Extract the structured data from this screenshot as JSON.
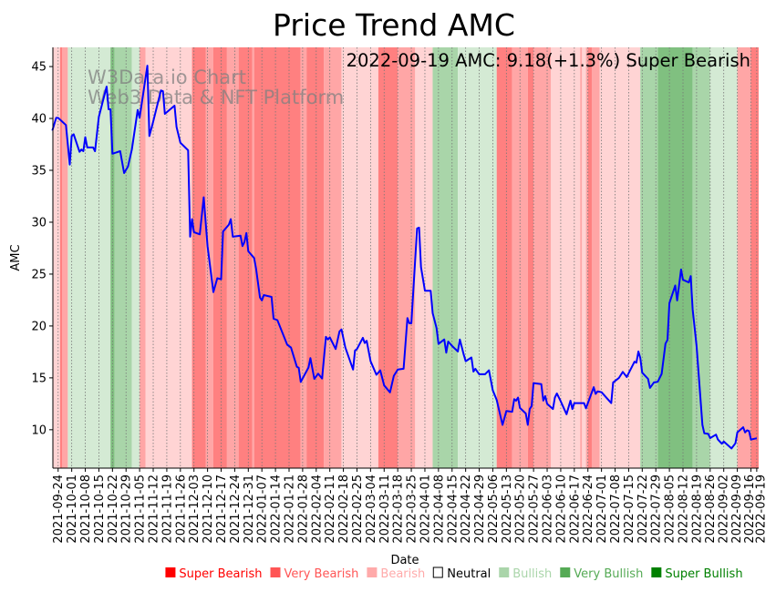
{
  "chart_data": {
    "type": "line",
    "title": "Price Trend AMC",
    "xlabel": "Date",
    "ylabel": "AMC",
    "ylim": [
      6.3,
      46.85
    ],
    "xlim": [
      "2021-09-21",
      "2022-09-20"
    ],
    "grid": "vertical dotted at x ticks",
    "annotation": "2022-09-19 AMC: 9.18(+1.3%) Super Bearish",
    "watermark": [
      "W3Data.io Chart",
      "Web3 Data & NFT Platform"
    ],
    "yticks": [
      10,
      15,
      20,
      25,
      30,
      35,
      40,
      45
    ],
    "xticks": [
      "2021-09-24",
      "2021-10-01",
      "2021-10-08",
      "2021-10-15",
      "2021-10-22",
      "2021-10-29",
      "2021-11-05",
      "2021-11-12",
      "2021-11-19",
      "2021-11-26",
      "2021-12-03",
      "2021-12-10",
      "2021-12-17",
      "2021-12-24",
      "2021-12-31",
      "2022-01-07",
      "2022-01-14",
      "2022-01-21",
      "2022-01-28",
      "2022-02-04",
      "2022-02-11",
      "2022-02-18",
      "2022-02-25",
      "2022-03-04",
      "2022-03-11",
      "2022-03-18",
      "2022-03-25",
      "2022-04-01",
      "2022-04-08",
      "2022-04-15",
      "2022-04-22",
      "2022-04-29",
      "2022-05-06",
      "2022-05-13",
      "2022-05-20",
      "2022-05-27",
      "2022-06-03",
      "2022-06-10",
      "2022-06-17",
      "2022-06-24",
      "2022-07-01",
      "2022-07-08",
      "2022-07-15",
      "2022-07-22",
      "2022-07-29",
      "2022-08-05",
      "2022-08-12",
      "2022-08-19",
      "2022-08-26",
      "2022-09-02",
      "2022-09-09",
      "2022-09-16",
      "2022-09-19"
    ],
    "legend": {
      "placement": "bottom",
      "entries": [
        {
          "label": "Super Bearish",
          "color": "#ff0000",
          "marker": "■"
        },
        {
          "label": "Very Bearish",
          "color": "#ff5555",
          "marker": "■"
        },
        {
          "label": "Bearish",
          "color": "#ffaaaa",
          "marker": "■"
        },
        {
          "label": "Neutral",
          "color": "#000000",
          "marker": "□"
        },
        {
          "label": "Bullish",
          "color": "#aad5aa",
          "marker": "■"
        },
        {
          "label": "Very Bullish",
          "color": "#55aa55",
          "marker": "■"
        },
        {
          "label": "Super Bullish",
          "color": "#008000",
          "marker": "■"
        }
      ]
    },
    "regime_colors": {
      "super_bearish": "#ff8080",
      "very_bearish": "#ffa6a6",
      "bearish": "#ffd4d4",
      "bullish": "#d4ead4",
      "very_bullish": "#a9d5a9",
      "super_bullish": "#80c080"
    },
    "regimes": [
      [
        "2021-09-21",
        "2021-09-25",
        "bearish"
      ],
      [
        "2021-09-25",
        "2021-09-26",
        "super_bearish"
      ],
      [
        "2021-09-26",
        "2021-09-29",
        "very_bearish"
      ],
      [
        "2021-09-29",
        "2021-10-21",
        "bullish"
      ],
      [
        "2021-10-21",
        "2021-10-23",
        "super_bullish"
      ],
      [
        "2021-10-23",
        "2021-11-01",
        "very_bullish"
      ],
      [
        "2021-11-01",
        "2021-11-05",
        "bullish"
      ],
      [
        "2021-11-05",
        "2021-11-08",
        "very_bearish"
      ],
      [
        "2021-11-08",
        "2021-12-02",
        "bearish"
      ],
      [
        "2021-12-02",
        "2021-12-09",
        "super_bearish"
      ],
      [
        "2021-12-09",
        "2021-12-13",
        "very_bearish"
      ],
      [
        "2021-12-13",
        "2021-12-20",
        "super_bearish"
      ],
      [
        "2021-12-20",
        "2021-12-26",
        "very_bearish"
      ],
      [
        "2021-12-26",
        "2022-01-02",
        "super_bearish"
      ],
      [
        "2022-01-02",
        "2022-01-03",
        "very_bearish"
      ],
      [
        "2022-01-03",
        "2022-01-27",
        "super_bearish"
      ],
      [
        "2022-01-27",
        "2022-01-30",
        "very_bearish"
      ],
      [
        "2022-01-30",
        "2022-02-08",
        "super_bearish"
      ],
      [
        "2022-02-08",
        "2022-02-17",
        "very_bearish"
      ],
      [
        "2022-02-17",
        "2022-03-08",
        "bearish"
      ],
      [
        "2022-03-08",
        "2022-03-18",
        "super_bearish"
      ],
      [
        "2022-03-18",
        "2022-03-27",
        "very_bearish"
      ],
      [
        "2022-03-27",
        "2022-04-05",
        "bearish"
      ],
      [
        "2022-04-05",
        "2022-04-18",
        "very_bullish"
      ],
      [
        "2022-04-18",
        "2022-05-08",
        "bullish"
      ],
      [
        "2022-05-08",
        "2022-05-16",
        "super_bearish"
      ],
      [
        "2022-05-16",
        "2022-05-24",
        "very_bearish"
      ],
      [
        "2022-05-24",
        "2022-05-27",
        "super_bearish"
      ],
      [
        "2022-05-27",
        "2022-06-05",
        "very_bearish"
      ],
      [
        "2022-06-05",
        "2022-06-20",
        "bearish"
      ],
      [
        "2022-06-20",
        "2022-06-21",
        "very_bearish"
      ],
      [
        "2022-06-21",
        "2022-06-23",
        "bearish"
      ],
      [
        "2022-06-23",
        "2022-06-24",
        "very_bearish"
      ],
      [
        "2022-06-24",
        "2022-06-26",
        "super_bearish"
      ],
      [
        "2022-06-26",
        "2022-06-30",
        "very_bearish"
      ],
      [
        "2022-06-30",
        "2022-07-21",
        "bearish"
      ],
      [
        "2022-07-21",
        "2022-07-30",
        "very_bullish"
      ],
      [
        "2022-07-30",
        "2022-08-17",
        "super_bullish"
      ],
      [
        "2022-08-17",
        "2022-08-26",
        "very_bullish"
      ],
      [
        "2022-08-26",
        "2022-09-09",
        "bullish"
      ],
      [
        "2022-09-09",
        "2022-09-16",
        "very_bearish"
      ],
      [
        "2022-09-16",
        "2022-09-20",
        "super_bearish"
      ]
    ],
    "series": [
      {
        "name": "AMC",
        "color": "#0000ff",
        "points": [
          [
            "2021-09-21",
            38.83
          ],
          [
            "2021-09-23",
            40.06
          ],
          [
            "2021-09-24",
            40.06
          ],
          [
            "2021-09-28",
            39.36
          ],
          [
            "2021-09-30",
            35.55
          ],
          [
            "2021-10-01",
            38.3
          ],
          [
            "2021-10-02",
            38.48
          ],
          [
            "2021-10-05",
            36.78
          ],
          [
            "2021-10-06",
            37.0
          ],
          [
            "2021-10-07",
            36.84
          ],
          [
            "2021-10-08",
            38.2
          ],
          [
            "2021-10-09",
            37.2
          ],
          [
            "2021-10-12",
            37.2
          ],
          [
            "2021-10-13",
            36.84
          ],
          [
            "2021-10-15",
            40.15
          ],
          [
            "2021-10-19",
            43.07
          ],
          [
            "2021-10-20",
            40.88
          ],
          [
            "2021-10-21",
            40.88
          ],
          [
            "2021-10-22",
            36.6
          ],
          [
            "2021-10-26",
            36.84
          ],
          [
            "2021-10-28",
            34.74
          ],
          [
            "2021-10-30",
            35.38
          ],
          [
            "2021-11-01",
            37.0
          ],
          [
            "2021-11-04",
            40.82
          ],
          [
            "2021-11-05",
            40.06
          ],
          [
            "2021-11-09",
            45.09
          ],
          [
            "2021-11-10",
            38.3
          ],
          [
            "2021-11-12",
            39.7
          ],
          [
            "2021-11-16",
            42.7
          ],
          [
            "2021-11-17",
            42.63
          ],
          [
            "2021-11-18",
            40.44
          ],
          [
            "2021-11-23",
            41.23
          ],
          [
            "2021-11-24",
            39.18
          ],
          [
            "2021-11-26",
            37.66
          ],
          [
            "2021-11-30",
            36.93
          ],
          [
            "2021-12-01",
            28.6
          ],
          [
            "2021-12-02",
            30.3
          ],
          [
            "2021-12-03",
            29.04
          ],
          [
            "2021-12-06",
            28.83
          ],
          [
            "2021-12-08",
            32.4
          ],
          [
            "2021-12-10",
            27.7
          ],
          [
            "2021-12-13",
            23.27
          ],
          [
            "2021-12-15",
            24.6
          ],
          [
            "2021-12-17",
            24.5
          ],
          [
            "2021-12-18",
            29.1
          ],
          [
            "2021-12-21",
            29.77
          ],
          [
            "2021-12-22",
            30.3
          ],
          [
            "2021-12-23",
            28.6
          ],
          [
            "2021-12-27",
            28.7
          ],
          [
            "2021-12-28",
            27.7
          ],
          [
            "2021-12-29",
            28.07
          ],
          [
            "2021-12-30",
            28.95
          ],
          [
            "2021-12-31",
            27.2
          ],
          [
            "2022-01-03",
            26.55
          ],
          [
            "2022-01-04",
            25.53
          ],
          [
            "2022-01-06",
            22.75
          ],
          [
            "2022-01-07",
            22.46
          ],
          [
            "2022-01-08",
            22.98
          ],
          [
            "2022-01-12",
            22.8
          ],
          [
            "2022-01-13",
            20.7
          ],
          [
            "2022-01-15",
            20.56
          ],
          [
            "2022-01-20",
            18.2
          ],
          [
            "2022-01-22",
            17.92
          ],
          [
            "2022-01-25",
            16.08
          ],
          [
            "2022-01-26",
            15.96
          ],
          [
            "2022-01-27",
            14.6
          ],
          [
            "2022-01-31",
            16.0
          ],
          [
            "2022-02-01",
            16.9
          ],
          [
            "2022-02-03",
            14.9
          ],
          [
            "2022-02-05",
            15.4
          ],
          [
            "2022-02-07",
            14.94
          ],
          [
            "2022-02-09",
            18.95
          ],
          [
            "2022-02-10",
            18.7
          ],
          [
            "2022-02-11",
            18.9
          ],
          [
            "2022-02-14",
            17.78
          ],
          [
            "2022-02-16",
            19.47
          ],
          [
            "2022-02-17",
            19.67
          ],
          [
            "2022-02-19",
            17.92
          ],
          [
            "2022-02-23",
            15.8
          ],
          [
            "2022-02-24",
            17.63
          ],
          [
            "2022-02-25",
            17.78
          ],
          [
            "2022-02-28",
            18.86
          ],
          [
            "2022-03-01",
            18.36
          ],
          [
            "2022-03-02",
            18.57
          ],
          [
            "2022-03-04",
            16.6
          ],
          [
            "2022-03-07",
            15.3
          ],
          [
            "2022-03-09",
            15.73
          ],
          [
            "2022-03-11",
            14.27
          ],
          [
            "2022-03-14",
            13.6
          ],
          [
            "2022-03-16",
            15.2
          ],
          [
            "2022-03-18",
            15.8
          ],
          [
            "2022-03-21",
            15.88
          ],
          [
            "2022-03-23",
            20.76
          ],
          [
            "2022-03-24",
            20.26
          ],
          [
            "2022-03-25",
            20.26
          ],
          [
            "2022-03-28",
            29.4
          ],
          [
            "2022-03-29",
            29.47
          ],
          [
            "2022-03-30",
            25.67
          ],
          [
            "2022-04-01",
            23.4
          ],
          [
            "2022-04-04",
            23.4
          ],
          [
            "2022-04-05",
            21.23
          ],
          [
            "2022-04-07",
            19.82
          ],
          [
            "2022-04-08",
            18.27
          ],
          [
            "2022-04-11",
            18.7
          ],
          [
            "2022-04-12",
            17.43
          ],
          [
            "2022-04-13",
            18.5
          ],
          [
            "2022-04-15",
            18.07
          ],
          [
            "2022-04-18",
            17.54
          ],
          [
            "2022-04-19",
            18.7
          ],
          [
            "2022-04-21",
            17.25
          ],
          [
            "2022-04-22",
            16.6
          ],
          [
            "2022-04-25",
            16.96
          ],
          [
            "2022-04-26",
            15.6
          ],
          [
            "2022-04-27",
            15.88
          ],
          [
            "2022-04-29",
            15.35
          ],
          [
            "2022-05-02",
            15.35
          ],
          [
            "2022-05-04",
            15.73
          ],
          [
            "2022-05-06",
            13.8
          ],
          [
            "2022-05-08",
            12.87
          ],
          [
            "2022-05-11",
            10.47
          ],
          [
            "2022-05-13",
            11.8
          ],
          [
            "2022-05-16",
            11.73
          ],
          [
            "2022-05-17",
            12.94
          ],
          [
            "2022-05-18",
            12.8
          ],
          [
            "2022-05-19",
            13.1
          ],
          [
            "2022-05-20",
            12.1
          ],
          [
            "2022-05-23",
            11.57
          ],
          [
            "2022-05-24",
            10.47
          ],
          [
            "2022-05-25",
            12.0
          ],
          [
            "2022-05-26",
            12.28
          ],
          [
            "2022-05-27",
            14.5
          ],
          [
            "2022-05-31",
            14.4
          ],
          [
            "2022-06-01",
            12.8
          ],
          [
            "2022-06-02",
            13.24
          ],
          [
            "2022-06-03",
            12.5
          ],
          [
            "2022-06-06",
            12.0
          ],
          [
            "2022-06-07",
            13.1
          ],
          [
            "2022-06-08",
            13.5
          ],
          [
            "2022-06-10",
            12.74
          ],
          [
            "2022-06-13",
            11.5
          ],
          [
            "2022-06-15",
            12.8
          ],
          [
            "2022-06-16",
            12.0
          ],
          [
            "2022-06-17",
            12.57
          ],
          [
            "2022-06-22",
            12.57
          ],
          [
            "2022-06-23",
            12.07
          ],
          [
            "2022-06-27",
            14.1
          ],
          [
            "2022-06-28",
            13.45
          ],
          [
            "2022-06-29",
            13.7
          ],
          [
            "2022-07-01",
            13.62
          ],
          [
            "2022-07-06",
            12.57
          ],
          [
            "2022-07-07",
            14.56
          ],
          [
            "2022-07-10",
            15.0
          ],
          [
            "2022-07-12",
            15.58
          ],
          [
            "2022-07-14",
            15.09
          ],
          [
            "2022-07-18",
            16.55
          ],
          [
            "2022-07-19",
            16.46
          ],
          [
            "2022-07-20",
            17.54
          ],
          [
            "2022-07-21",
            16.9
          ],
          [
            "2022-07-22",
            15.5
          ],
          [
            "2022-07-25",
            14.9
          ],
          [
            "2022-07-26",
            14.03
          ],
          [
            "2022-07-28",
            14.56
          ],
          [
            "2022-07-30",
            14.62
          ],
          [
            "2022-08-01",
            15.38
          ],
          [
            "2022-08-03",
            18.3
          ],
          [
            "2022-08-04",
            18.66
          ],
          [
            "2022-08-05",
            22.2
          ],
          [
            "2022-08-08",
            23.9
          ],
          [
            "2022-08-09",
            22.46
          ],
          [
            "2022-08-11",
            25.44
          ],
          [
            "2022-08-12",
            24.45
          ],
          [
            "2022-08-15",
            24.2
          ],
          [
            "2022-08-16",
            24.8
          ],
          [
            "2022-08-17",
            21.6
          ],
          [
            "2022-08-19",
            18.07
          ],
          [
            "2022-08-22",
            10.47
          ],
          [
            "2022-08-23",
            9.65
          ],
          [
            "2022-08-25",
            9.6
          ],
          [
            "2022-08-26",
            9.2
          ],
          [
            "2022-08-29",
            9.53
          ],
          [
            "2022-08-30",
            9.06
          ],
          [
            "2022-09-01",
            8.65
          ],
          [
            "2022-09-02",
            8.86
          ],
          [
            "2022-09-06",
            8.2
          ],
          [
            "2022-09-08",
            8.7
          ],
          [
            "2022-09-09",
            9.74
          ],
          [
            "2022-09-12",
            10.24
          ],
          [
            "2022-09-13",
            9.74
          ],
          [
            "2022-09-14",
            9.94
          ],
          [
            "2022-09-15",
            9.88
          ],
          [
            "2022-09-16",
            9.06
          ],
          [
            "2022-09-19",
            9.18
          ]
        ]
      }
    ]
  }
}
